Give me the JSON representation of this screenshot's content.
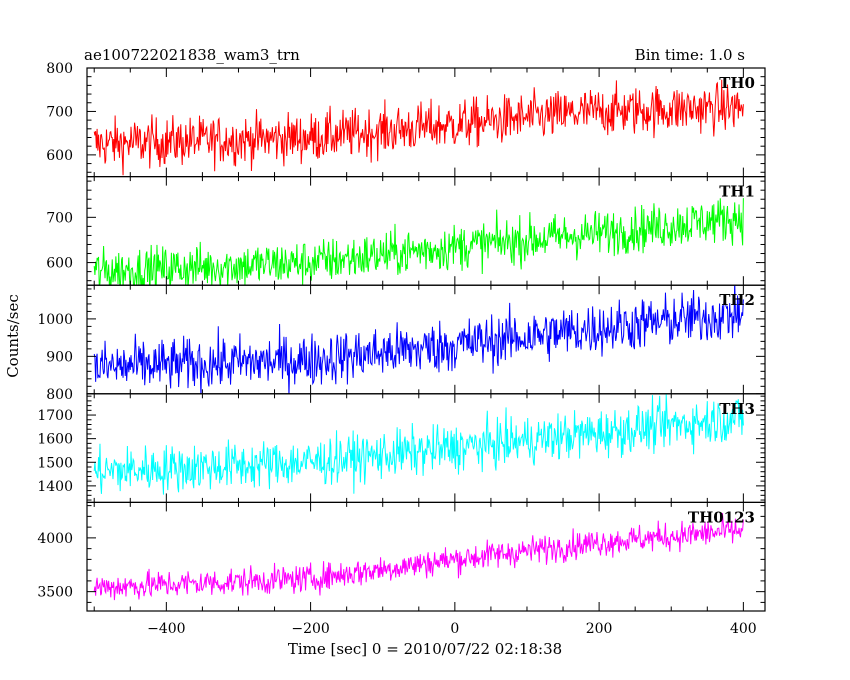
{
  "header": {
    "title": "ae100722021838_wam3_trn",
    "bin_time": "Bin time: 1.0 s"
  },
  "chart_data": {
    "type": "line",
    "xlabel": "Time [sec] 0 = 2010/07/22 02:18:38",
    "ylabel": "Counts/sec",
    "xlim": [
      -510,
      430
    ],
    "x_ticks": [
      -400,
      -200,
      0,
      200,
      400
    ],
    "x_minor_step": 50,
    "t_start": -500,
    "t_end": 400,
    "bin_time": 1.0,
    "panels": [
      {
        "name": "TH0",
        "color": "#ff0000",
        "ylim": [
          550,
          800
        ],
        "y_ticks": [
          600,
          700,
          800
        ],
        "y_minor_step": 20,
        "trend": [
          [
            -500,
            625
          ],
          [
            -200,
            640
          ],
          [
            0,
            670
          ],
          [
            200,
            700
          ],
          [
            400,
            710
          ]
        ],
        "noise": 28
      },
      {
        "name": "TH1",
        "color": "#00ff00",
        "ylim": [
          550,
          790
        ],
        "y_ticks": [
          600,
          700
        ],
        "y_minor_step": 20,
        "trend": [
          [
            -500,
            580
          ],
          [
            -200,
            600
          ],
          [
            0,
            635
          ],
          [
            200,
            665
          ],
          [
            400,
            700
          ]
        ],
        "noise": 25
      },
      {
        "name": "TH2",
        "color": "#0000ff",
        "ylim": [
          800,
          1090
        ],
        "y_ticks": [
          800,
          900,
          1000
        ],
        "y_minor_step": 20,
        "trend": [
          [
            -500,
            870
          ],
          [
            -200,
            890
          ],
          [
            0,
            930
          ],
          [
            200,
            975
          ],
          [
            400,
            1015
          ]
        ],
        "noise": 35
      },
      {
        "name": "TH3",
        "color": "#00ffff",
        "ylim": [
          1330,
          1790
        ],
        "y_ticks": [
          1400,
          1500,
          1600,
          1700
        ],
        "y_minor_step": 20,
        "trend": [
          [
            -500,
            1460
          ],
          [
            -200,
            1500
          ],
          [
            0,
            1560
          ],
          [
            200,
            1625
          ],
          [
            400,
            1690
          ]
        ],
        "noise": 50
      },
      {
        "name": "TH0123",
        "color": "#ff00ff",
        "ylim": [
          3320,
          4330
        ],
        "y_ticks": [
          3500,
          4000
        ],
        "y_minor_step": 100,
        "trend": [
          [
            -500,
            3540
          ],
          [
            -200,
            3620
          ],
          [
            0,
            3800
          ],
          [
            200,
            3960
          ],
          [
            400,
            4070
          ]
        ],
        "noise": 65
      }
    ]
  }
}
